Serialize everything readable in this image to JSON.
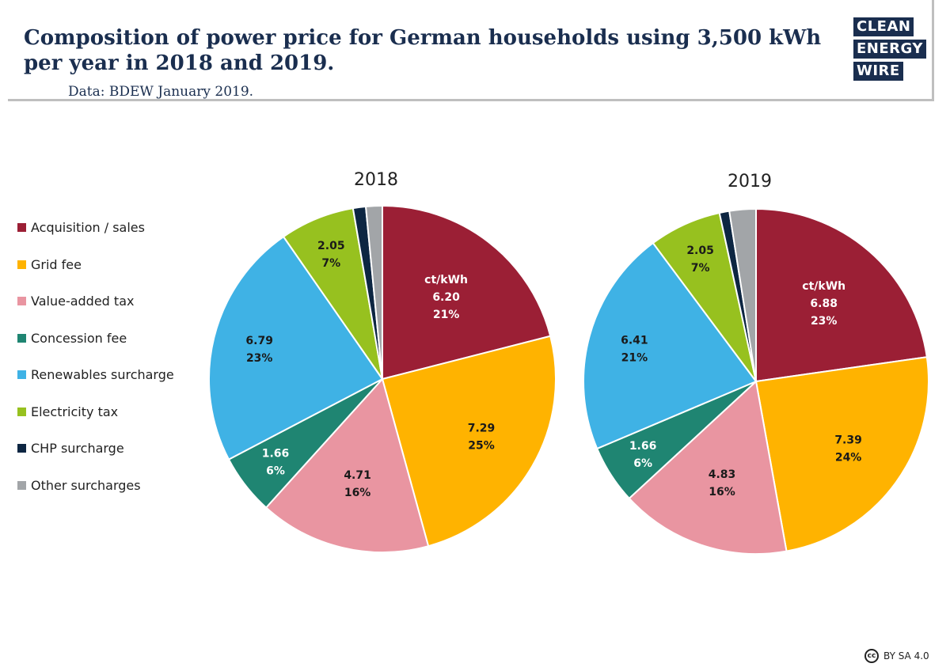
{
  "header": {
    "title": "Composition of power price for German households using 3,500 kWh per year in 2018 and 2019.",
    "subtitle": "Data: BDEW January 2019."
  },
  "logo": {
    "lines": [
      "CLEAN",
      "ENERGY",
      "WIRE"
    ]
  },
  "license": {
    "icon": "cc-icon",
    "icon_text": "cc",
    "text": "BY SA 4.0"
  },
  "chart_data": {
    "type": "pie",
    "unit_label": "ct/kWh",
    "legend_placement": "left",
    "categories": [
      {
        "name": "Acquisition / sales",
        "color": "#9b1f35"
      },
      {
        "name": "Grid fee",
        "color": "#ffb300"
      },
      {
        "name": "Value-added tax",
        "color": "#e995a1"
      },
      {
        "name": "Concession fee",
        "color": "#1f8572"
      },
      {
        "name": "Renewables surcharge",
        "color": "#3fb2e5"
      },
      {
        "name": "Electricity tax",
        "color": "#97c11f"
      },
      {
        "name": "CHP surcharge",
        "color": "#0d2642"
      },
      {
        "name": "Other surcharges",
        "color": "#a2a5a8"
      }
    ],
    "charts": [
      {
        "title": "2018",
        "values": [
          6.2,
          7.29,
          4.71,
          1.66,
          6.79,
          2.05,
          0.35,
          0.45
        ],
        "labels": [
          {
            "value": "6.20",
            "percent": "21%"
          },
          {
            "value": "7.29",
            "percent": "25%"
          },
          {
            "value": "4.71",
            "percent": "16%"
          },
          {
            "value": "1.66",
            "percent": "6%"
          },
          {
            "value": "6.79",
            "percent": "23%"
          },
          {
            "value": "2.05",
            "percent": "7%"
          },
          null,
          null
        ]
      },
      {
        "title": "2019",
        "values": [
          6.88,
          7.39,
          4.83,
          1.66,
          6.41,
          2.05,
          0.28,
          0.75
        ],
        "labels": [
          {
            "value": "6.88",
            "percent": "23%"
          },
          {
            "value": "7.39",
            "percent": "24%"
          },
          {
            "value": "4.83",
            "percent": "16%"
          },
          {
            "value": "1.66",
            "percent": "6%"
          },
          {
            "value": "6.41",
            "percent": "21%"
          },
          {
            "value": "2.05",
            "percent": "7%"
          },
          null,
          null
        ]
      }
    ]
  }
}
